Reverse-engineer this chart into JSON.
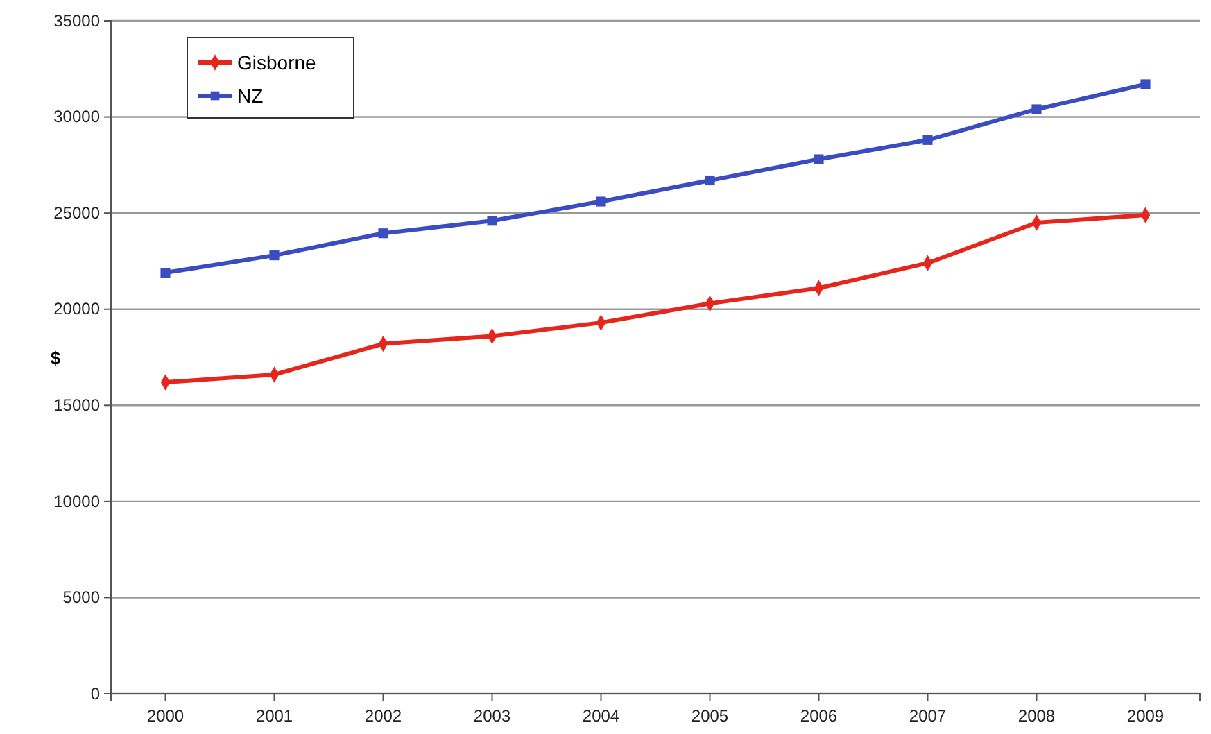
{
  "chart_data": {
    "type": "line",
    "ylabel": "$",
    "categories": [
      "2000",
      "2001",
      "2002",
      "2003",
      "2004",
      "2005",
      "2006",
      "2007",
      "2008",
      "2009"
    ],
    "series": [
      {
        "name": "Gisborne",
        "color": "#e5261c",
        "marker": "diamond",
        "values": [
          16200,
          16600,
          18200,
          18600,
          19300,
          20300,
          21100,
          22400,
          24500,
          24900
        ]
      },
      {
        "name": "NZ",
        "color": "#3a4cc0",
        "marker": "square",
        "values": [
          21900,
          22800,
          23950,
          24600,
          25600,
          26700,
          27800,
          28800,
          30400,
          31700
        ]
      }
    ],
    "ylim": [
      0,
      35000
    ],
    "yticks": [
      0,
      5000,
      10000,
      15000,
      20000,
      25000,
      30000,
      35000
    ],
    "grid": "y",
    "legend": "top left",
    "line_style": "solid"
  }
}
